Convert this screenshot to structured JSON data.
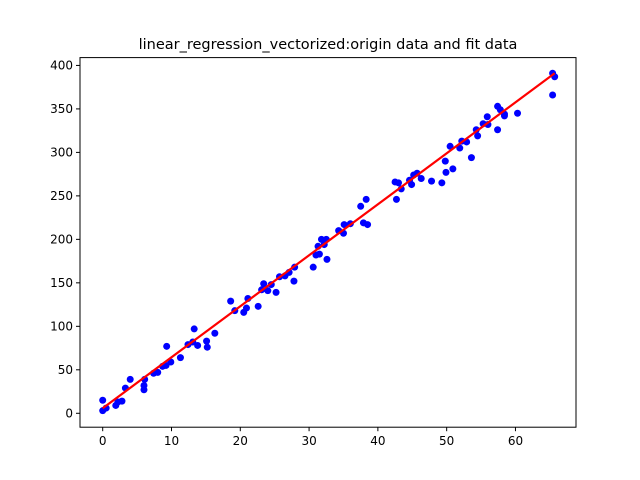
{
  "chart_data": {
    "type": "scatter",
    "title": "linear_regression_vectorized:origin data and fit data",
    "xlabel": "",
    "ylabel": "",
    "xlim": [
      -3.3,
      68.8
    ],
    "ylim": [
      -16,
      409
    ],
    "x_ticks": [
      0,
      10,
      20,
      30,
      40,
      50,
      60
    ],
    "y_ticks": [
      0,
      50,
      100,
      150,
      200,
      250,
      300,
      350,
      400
    ],
    "grid": false,
    "colors": {
      "points": "#0000ff",
      "fit_line": "#ff0000"
    },
    "series": [
      {
        "type": "scatter",
        "points": [
          [
            0.0,
            3
          ],
          [
            0.0,
            15
          ],
          [
            0.5,
            6
          ],
          [
            1.9,
            9
          ],
          [
            2.2,
            13
          ],
          [
            2.8,
            14
          ],
          [
            3.3,
            29
          ],
          [
            4.0,
            39
          ],
          [
            6.0,
            27
          ],
          [
            6.0,
            32
          ],
          [
            6.1,
            39
          ],
          [
            7.4,
            46
          ],
          [
            8.0,
            47
          ],
          [
            8.7,
            54
          ],
          [
            9.2,
            55
          ],
          [
            9.3,
            77
          ],
          [
            9.9,
            59
          ],
          [
            11.3,
            64
          ],
          [
            12.4,
            79
          ],
          [
            13.1,
            82
          ],
          [
            13.3,
            97
          ],
          [
            13.8,
            78
          ],
          [
            15.1,
            83
          ],
          [
            15.2,
            76
          ],
          [
            16.3,
            92
          ],
          [
            18.6,
            129
          ],
          [
            19.2,
            118
          ],
          [
            20.5,
            116
          ],
          [
            20.9,
            121
          ],
          [
            21.1,
            132
          ],
          [
            22.6,
            123
          ],
          [
            23.1,
            142
          ],
          [
            23.4,
            149
          ],
          [
            24.0,
            141
          ],
          [
            24.5,
            148
          ],
          [
            25.2,
            139
          ],
          [
            25.7,
            157
          ],
          [
            26.5,
            158
          ],
          [
            27.1,
            162
          ],
          [
            27.8,
            152
          ],
          [
            27.9,
            168
          ],
          [
            30.6,
            168
          ],
          [
            31.0,
            182
          ],
          [
            31.3,
            192
          ],
          [
            31.5,
            183
          ],
          [
            31.8,
            200
          ],
          [
            32.2,
            194
          ],
          [
            32.5,
            200
          ],
          [
            32.6,
            177
          ],
          [
            34.3,
            210
          ],
          [
            35.0,
            207
          ],
          [
            35.1,
            217
          ],
          [
            36.0,
            218
          ],
          [
            37.5,
            238
          ],
          [
            37.9,
            219
          ],
          [
            38.3,
            246
          ],
          [
            38.5,
            217
          ],
          [
            42.5,
            266
          ],
          [
            42.7,
            246
          ],
          [
            43.0,
            265
          ],
          [
            43.4,
            258
          ],
          [
            44.6,
            268
          ],
          [
            44.9,
            263
          ],
          [
            45.2,
            274
          ],
          [
            45.7,
            276
          ],
          [
            46.3,
            270
          ],
          [
            47.8,
            267
          ],
          [
            49.3,
            265
          ],
          [
            49.8,
            290
          ],
          [
            49.9,
            277
          ],
          [
            50.5,
            307
          ],
          [
            50.9,
            281
          ],
          [
            51.9,
            305
          ],
          [
            52.2,
            313
          ],
          [
            52.9,
            312
          ],
          [
            53.6,
            294
          ],
          [
            54.3,
            326
          ],
          [
            54.5,
            319
          ],
          [
            55.3,
            333
          ],
          [
            55.9,
            341
          ],
          [
            56.0,
            332
          ],
          [
            57.4,
            353
          ],
          [
            57.4,
            326
          ],
          [
            57.8,
            349
          ],
          [
            58.4,
            342
          ],
          [
            58.4,
            344
          ],
          [
            60.3,
            345
          ],
          [
            65.4,
            391
          ],
          [
            65.4,
            366
          ],
          [
            65.7,
            387
          ]
        ]
      },
      {
        "type": "line",
        "x": [
          0.0,
          65.7
        ],
        "y": [
          5.8,
          391.0
        ]
      }
    ]
  }
}
